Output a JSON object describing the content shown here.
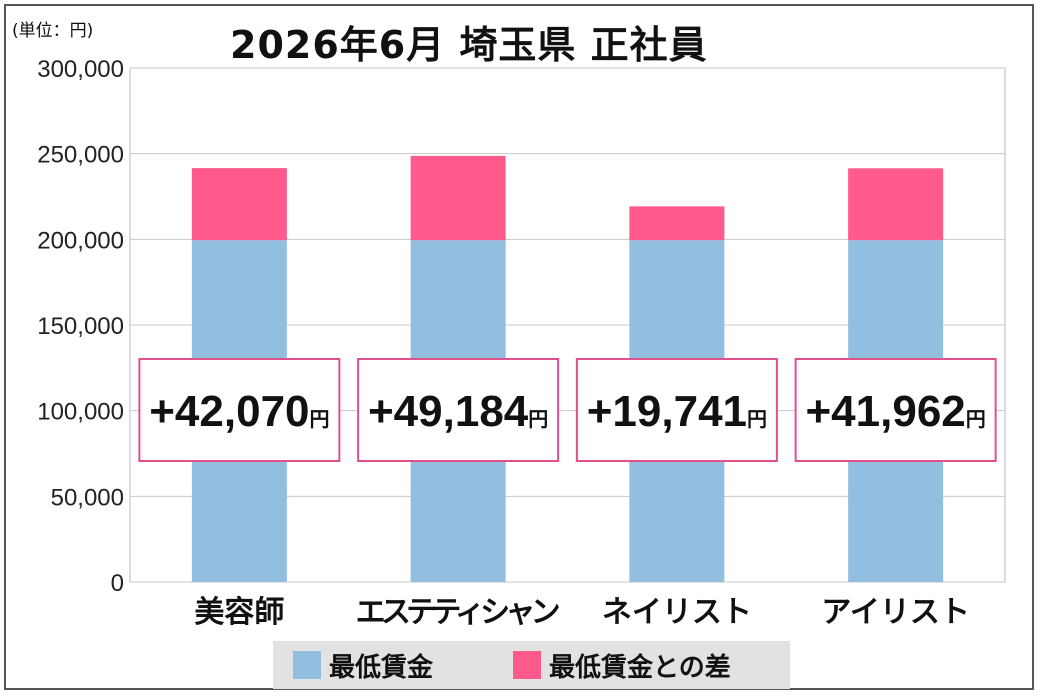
{
  "unit_label": "(単位：円)",
  "chart_data": {
    "type": "bar",
    "title": "2026年6月 埼玉県 正社員",
    "unit": "(単位：円)",
    "categories": [
      "美容師",
      "エステティシャン",
      "ネイリスト",
      "アイリスト"
    ],
    "series": [
      {
        "name": "最低賃金",
        "values": [
          199500,
          199500,
          199500,
          199500
        ],
        "color": "#92bedf"
      },
      {
        "name": "最低賃金との差",
        "values": [
          42070,
          49184,
          19741,
          41962
        ],
        "color": "#ff5a8c"
      }
    ],
    "diff_labels": [
      "+42,070",
      "+49,184",
      "+19,741",
      "+41,962"
    ],
    "diff_unit": "円",
    "ylim": [
      0,
      300000
    ],
    "yticks": [
      0,
      50000,
      100000,
      150000,
      200000,
      250000,
      300000
    ],
    "ytick_labels": [
      "0",
      "50,000",
      "100,000",
      "150,000",
      "200,000",
      "250,000",
      "300,000"
    ],
    "grid": true,
    "legend_position": "bottom"
  }
}
